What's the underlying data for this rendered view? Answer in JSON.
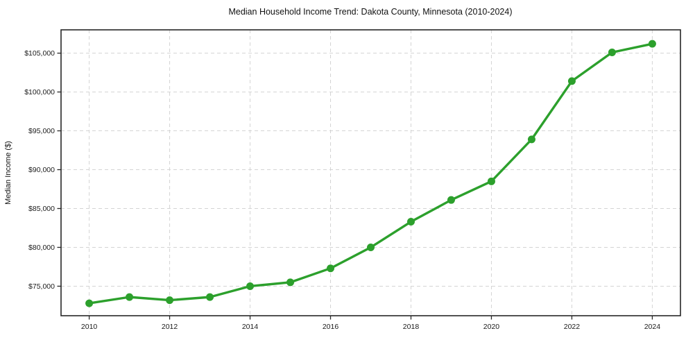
{
  "chart_data": {
    "type": "line",
    "title": "Median Household Income Trend: Dakota County, Minnesota (2010-2024)",
    "xlabel": "",
    "ylabel": "Median Income ($)",
    "x": [
      2010,
      2011,
      2012,
      2013,
      2014,
      2015,
      2016,
      2017,
      2018,
      2019,
      2020,
      2021,
      2022,
      2023,
      2024
    ],
    "series": [
      {
        "name": "Median Household Income",
        "values": [
          72800,
          73600,
          73200,
          73600,
          75000,
          75500,
          77300,
          80000,
          83300,
          86100,
          88500,
          93900,
          101400,
          105100,
          106200
        ],
        "color": "#2ca02c",
        "marker": "circle"
      }
    ],
    "x_ticks": [
      2010,
      2012,
      2014,
      2016,
      2018,
      2020,
      2022,
      2024
    ],
    "x_tick_labels": [
      "2010",
      "2012",
      "2014",
      "2016",
      "2018",
      "2020",
      "2022",
      "2024"
    ],
    "y_ticks": [
      75000,
      80000,
      85000,
      90000,
      95000,
      100000,
      105000
    ],
    "y_tick_labels": [
      "$75,000",
      "$80,000",
      "$85,000",
      "$90,000",
      "$95,000",
      "$100,000",
      "$105,000"
    ],
    "xlim": [
      2009.3,
      2024.7
    ],
    "ylim": [
      71200,
      108000
    ],
    "grid": true,
    "grid_style": "dashed",
    "legend_position": "none",
    "accent_color": "#2ca02c",
    "grid_color": "#d4d4d4",
    "spine_color": "#262626"
  }
}
